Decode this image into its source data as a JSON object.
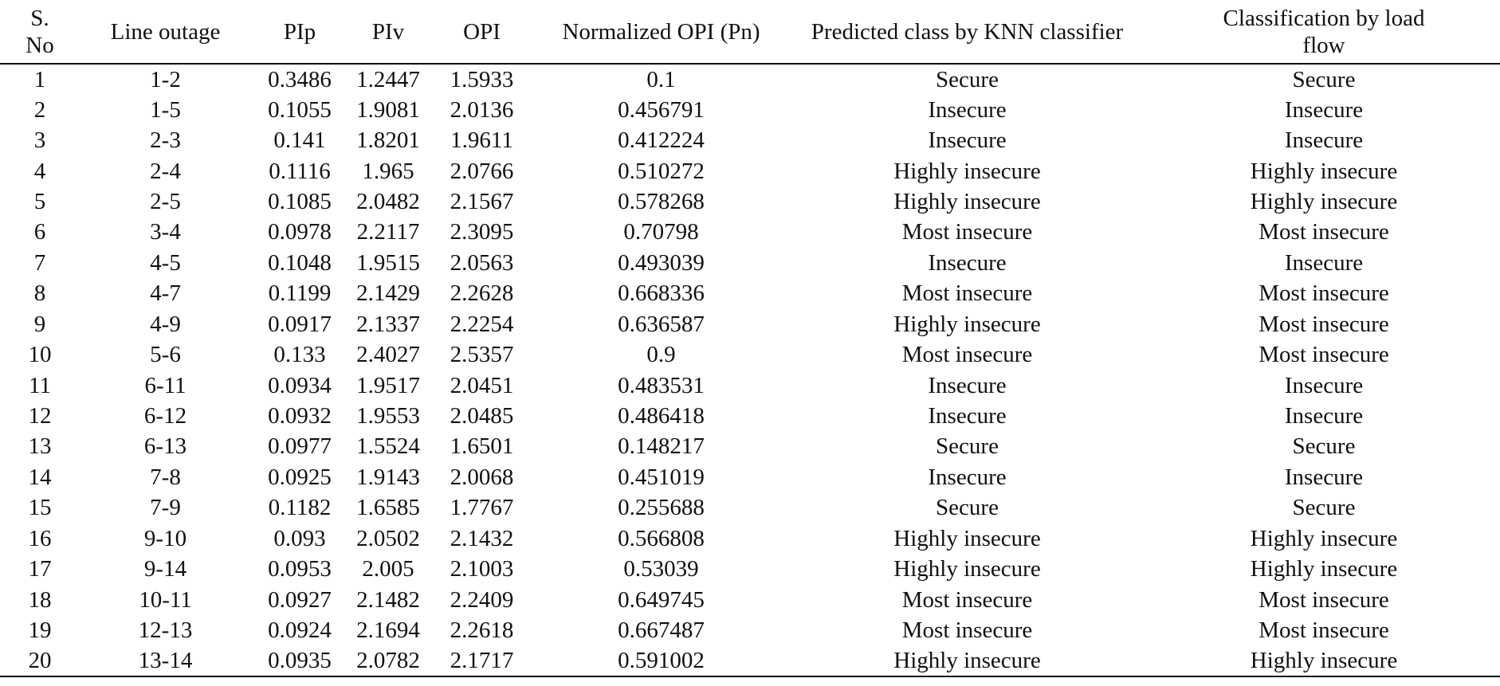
{
  "table": {
    "headers": [
      "S. No",
      "Line outage",
      "PIp",
      "PIv",
      "OPI",
      "Normalized OPI (Pn)",
      "Predicted class by KNN classifier",
      "Classification by load flow"
    ],
    "rows": [
      [
        "1",
        "1-2",
        "0.3486",
        "1.2447",
        "1.5933",
        "0.1",
        "Secure",
        "Secure"
      ],
      [
        "2",
        "1-5",
        "0.1055",
        "1.9081",
        "2.0136",
        "0.456791",
        "Insecure",
        "Insecure"
      ],
      [
        "3",
        "2-3",
        "0.141",
        "1.8201",
        "1.9611",
        "0.412224",
        "Insecure",
        "Insecure"
      ],
      [
        "4",
        "2-4",
        "0.1116",
        "1.965",
        "2.0766",
        "0.510272",
        "Highly insecure",
        "Highly insecure"
      ],
      [
        "5",
        "2-5",
        "0.1085",
        "2.0482",
        "2.1567",
        "0.578268",
        "Highly insecure",
        "Highly insecure"
      ],
      [
        "6",
        "3-4",
        "0.0978",
        "2.2117",
        "2.3095",
        "0.70798",
        "Most insecure",
        "Most insecure"
      ],
      [
        "7",
        "4-5",
        "0.1048",
        "1.9515",
        "2.0563",
        "0.493039",
        "Insecure",
        "Insecure"
      ],
      [
        "8",
        "4-7",
        "0.1199",
        "2.1429",
        "2.2628",
        "0.668336",
        "Most insecure",
        "Most insecure"
      ],
      [
        "9",
        "4-9",
        "0.0917",
        "2.1337",
        "2.2254",
        "0.636587",
        "Highly insecure",
        "Most insecure"
      ],
      [
        "10",
        "5-6",
        "0.133",
        "2.4027",
        "2.5357",
        "0.9",
        "Most insecure",
        "Most insecure"
      ],
      [
        "11",
        "6-11",
        "0.0934",
        "1.9517",
        "2.0451",
        "0.483531",
        "Insecure",
        "Insecure"
      ],
      [
        "12",
        "6-12",
        "0.0932",
        "1.9553",
        "2.0485",
        "0.486418",
        "Insecure",
        "Insecure"
      ],
      [
        "13",
        "6-13",
        "0.0977",
        "1.5524",
        "1.6501",
        "0.148217",
        "Secure",
        "Secure"
      ],
      [
        "14",
        "7-8",
        "0.0925",
        "1.9143",
        "2.0068",
        "0.451019",
        "Insecure",
        "Insecure"
      ],
      [
        "15",
        "7-9",
        "0.1182",
        "1.6585",
        "1.7767",
        "0.255688",
        "Secure",
        "Secure"
      ],
      [
        "16",
        "9-10",
        "0.093",
        "2.0502",
        "2.1432",
        "0.566808",
        "Highly insecure",
        "Highly insecure"
      ],
      [
        "17",
        "9-14",
        "0.0953",
        "2.005",
        "2.1003",
        "0.53039",
        "Highly insecure",
        "Highly insecure"
      ],
      [
        "18",
        "10-11",
        "0.0927",
        "2.1482",
        "2.2409",
        "0.649745",
        "Most insecure",
        "Most insecure"
      ],
      [
        "19",
        "12-13",
        "0.0924",
        "2.1694",
        "2.2618",
        "0.667487",
        "Most insecure",
        "Most insecure"
      ],
      [
        "20",
        "13-14",
        "0.0935",
        "2.0782",
        "2.1717",
        "0.591002",
        "Highly insecure",
        "Highly insecure"
      ]
    ]
  }
}
